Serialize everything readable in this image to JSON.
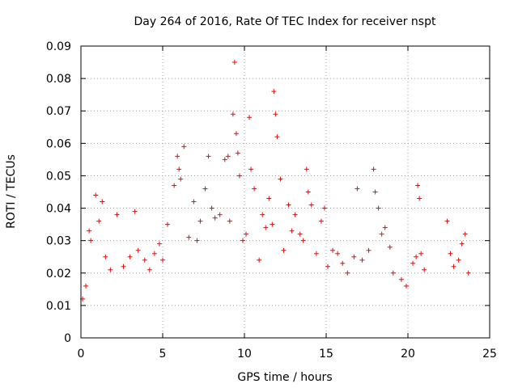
{
  "chart_data": {
    "type": "scatter",
    "title": "Day 264 of 2016, Rate Of TEC Index for receiver nspt",
    "xlabel": "GPS time / hours",
    "ylabel": "ROTI / TECUs",
    "xlim": [
      0,
      25
    ],
    "ylim": [
      0,
      0.09
    ],
    "xticks": [
      0,
      5,
      10,
      15,
      20,
      25
    ],
    "xtick_labels": [
      "0",
      "5",
      "10",
      "15",
      "20",
      "25"
    ],
    "yticks": [
      0,
      0.01,
      0.02,
      0.03,
      0.04,
      0.05,
      0.06,
      0.07,
      0.08,
      0.09
    ],
    "ytick_labels": [
      "0",
      "0.01",
      "0.02",
      "0.03",
      "0.04",
      "0.05",
      "0.06",
      "0.07",
      "0.08",
      "0.09"
    ],
    "grid": true,
    "marker": "+",
    "color": "#ff0000",
    "series": [
      {
        "name": "ROTI",
        "points": [
          [
            0.1,
            0.012
          ],
          [
            0.3,
            0.016
          ],
          [
            0.5,
            0.033
          ],
          [
            0.6,
            0.03
          ],
          [
            0.9,
            0.044
          ],
          [
            1.1,
            0.036
          ],
          [
            1.3,
            0.042
          ],
          [
            1.5,
            0.025
          ],
          [
            1.8,
            0.021
          ],
          [
            2.2,
            0.038
          ],
          [
            2.6,
            0.022
          ],
          [
            3.0,
            0.025
          ],
          [
            3.3,
            0.039
          ],
          [
            3.5,
            0.027
          ],
          [
            3.9,
            0.024
          ],
          [
            4.2,
            0.021
          ],
          [
            4.5,
            0.026
          ],
          [
            4.8,
            0.029
          ],
          [
            5.0,
            0.024
          ],
          [
            5.3,
            0.035
          ],
          [
            5.7,
            0.047
          ],
          [
            5.9,
            0.056
          ],
          [
            6.0,
            0.052
          ],
          [
            6.1,
            0.049
          ],
          [
            6.3,
            0.059
          ],
          [
            6.6,
            0.031
          ],
          [
            6.9,
            0.042
          ],
          [
            7.1,
            0.03
          ],
          [
            7.3,
            0.036
          ],
          [
            7.6,
            0.046
          ],
          [
            7.8,
            0.056
          ],
          [
            8.0,
            0.04
          ],
          [
            8.2,
            0.037
          ],
          [
            8.5,
            0.038
          ],
          [
            8.8,
            0.055
          ],
          [
            9.0,
            0.056
          ],
          [
            9.1,
            0.036
          ],
          [
            9.3,
            0.069
          ],
          [
            9.4,
            0.085
          ],
          [
            9.5,
            0.063
          ],
          [
            9.6,
            0.057
          ],
          [
            9.7,
            0.05
          ],
          [
            9.9,
            0.03
          ],
          [
            10.1,
            0.032
          ],
          [
            10.3,
            0.068
          ],
          [
            10.4,
            0.052
          ],
          [
            10.6,
            0.046
          ],
          [
            10.9,
            0.024
          ],
          [
            11.1,
            0.038
          ],
          [
            11.3,
            0.034
          ],
          [
            11.5,
            0.043
          ],
          [
            11.7,
            0.035
          ],
          [
            11.8,
            0.076
          ],
          [
            11.9,
            0.069
          ],
          [
            12.0,
            0.062
          ],
          [
            12.2,
            0.049
          ],
          [
            12.4,
            0.027
          ],
          [
            12.7,
            0.041
          ],
          [
            12.9,
            0.033
          ],
          [
            13.1,
            0.038
          ],
          [
            13.4,
            0.032
          ],
          [
            13.6,
            0.03
          ],
          [
            13.8,
            0.052
          ],
          [
            13.9,
            0.045
          ],
          [
            14.1,
            0.041
          ],
          [
            14.4,
            0.026
          ],
          [
            14.7,
            0.036
          ],
          [
            14.9,
            0.04
          ],
          [
            15.1,
            0.022
          ],
          [
            15.4,
            0.027
          ],
          [
            15.7,
            0.026
          ],
          [
            16.0,
            0.023
          ],
          [
            16.3,
            0.02
          ],
          [
            16.7,
            0.025
          ],
          [
            16.9,
            0.046
          ],
          [
            17.2,
            0.024
          ],
          [
            17.6,
            0.027
          ],
          [
            17.9,
            0.052
          ],
          [
            18.0,
            0.045
          ],
          [
            18.2,
            0.04
          ],
          [
            18.4,
            0.032
          ],
          [
            18.6,
            0.034
          ],
          [
            18.9,
            0.028
          ],
          [
            19.1,
            0.02
          ],
          [
            19.6,
            0.018
          ],
          [
            19.9,
            0.016
          ],
          [
            20.3,
            0.023
          ],
          [
            20.5,
            0.025
          ],
          [
            20.6,
            0.047
          ],
          [
            20.7,
            0.043
          ],
          [
            20.8,
            0.026
          ],
          [
            21.0,
            0.021
          ],
          [
            22.4,
            0.036
          ],
          [
            22.6,
            0.026
          ],
          [
            22.8,
            0.022
          ],
          [
            23.1,
            0.024
          ],
          [
            23.3,
            0.029
          ],
          [
            23.5,
            0.032
          ],
          [
            23.7,
            0.02
          ]
        ]
      }
    ]
  }
}
